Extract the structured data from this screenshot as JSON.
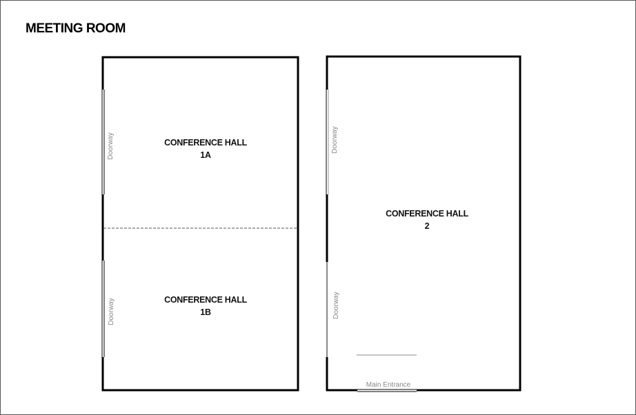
{
  "title": "MEETING ROOM",
  "rooms": {
    "hall_1a": {
      "line1": "CONFERENCE HALL",
      "line2": "1A"
    },
    "hall_1b": {
      "line1": "CONFERENCE HALL",
      "line2": "1B"
    },
    "hall_2": {
      "line1": "CONFERENCE HALL",
      "line2": "2"
    }
  },
  "labels": {
    "doorway": "Doorway",
    "main_entrance": "Main Entrance"
  },
  "colors": {
    "wall": "#000000",
    "label": "#888888",
    "divider": "#555555"
  }
}
